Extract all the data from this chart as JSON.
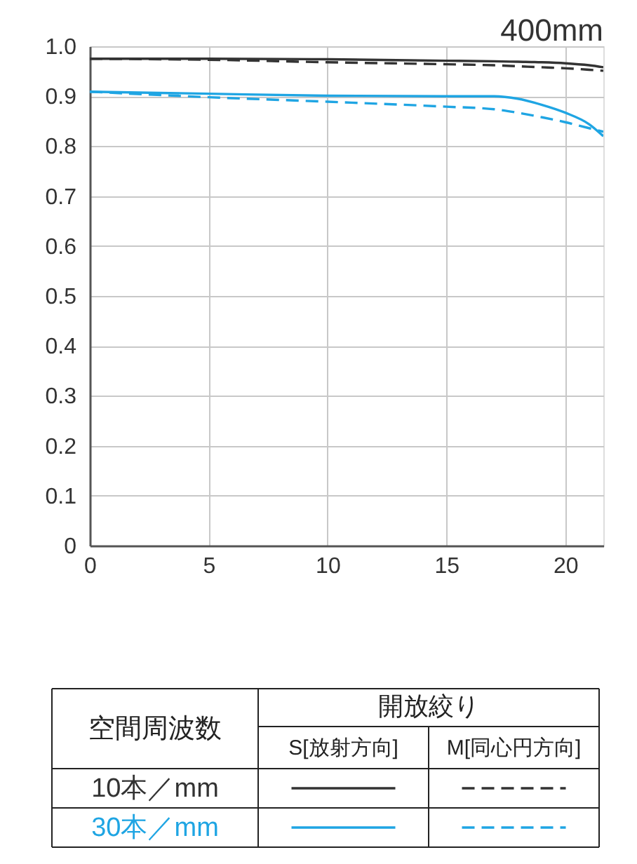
{
  "chart_data": {
    "type": "line",
    "title": "400mm",
    "x": [
      0,
      5,
      10,
      15,
      17,
      18,
      19,
      20,
      21,
      21.6
    ],
    "series": [
      {
        "name": "10本／mm",
        "color": "#333333",
        "line_style": "solid",
        "values": [
          0.975,
          0.975,
          0.974,
          0.971,
          0.97,
          0.969,
          0.968,
          0.966,
          0.962,
          0.958
        ]
      },
      {
        "color": "#333333",
        "line_style": "dashed",
        "values": [
          0.975,
          0.973,
          0.968,
          0.964,
          0.962,
          0.96,
          0.958,
          0.956,
          0.953,
          0.951
        ]
      },
      {
        "name": "30本／mm",
        "color": "#1fa5e3",
        "line_style": "solid",
        "values": [
          0.909,
          0.905,
          0.901,
          0.9,
          0.9,
          0.895,
          0.883,
          0.867,
          0.844,
          0.82
        ]
      },
      {
        "color": "#1fa5e3",
        "line_style": "dashed",
        "values": [
          0.909,
          0.898,
          0.889,
          0.879,
          0.874,
          0.867,
          0.858,
          0.848,
          0.836,
          0.829
        ]
      }
    ],
    "xlim": [
      0,
      21.6
    ],
    "ylim": [
      0,
      1
    ],
    "xticks": [
      0,
      5,
      10,
      15,
      20
    ],
    "yticks": [
      0,
      0.1,
      0.2,
      0.3,
      0.4,
      0.5,
      0.6,
      0.7,
      0.8,
      0.9,
      {
        "value": 1,
        "label": "1.0"
      }
    ],
    "grid": true,
    "legend": "bottom",
    "legend_title": "空間周波数",
    "annotations": [
      "開放絞り",
      "S[放射方向]",
      "M[同心円方向]"
    ]
  }
}
